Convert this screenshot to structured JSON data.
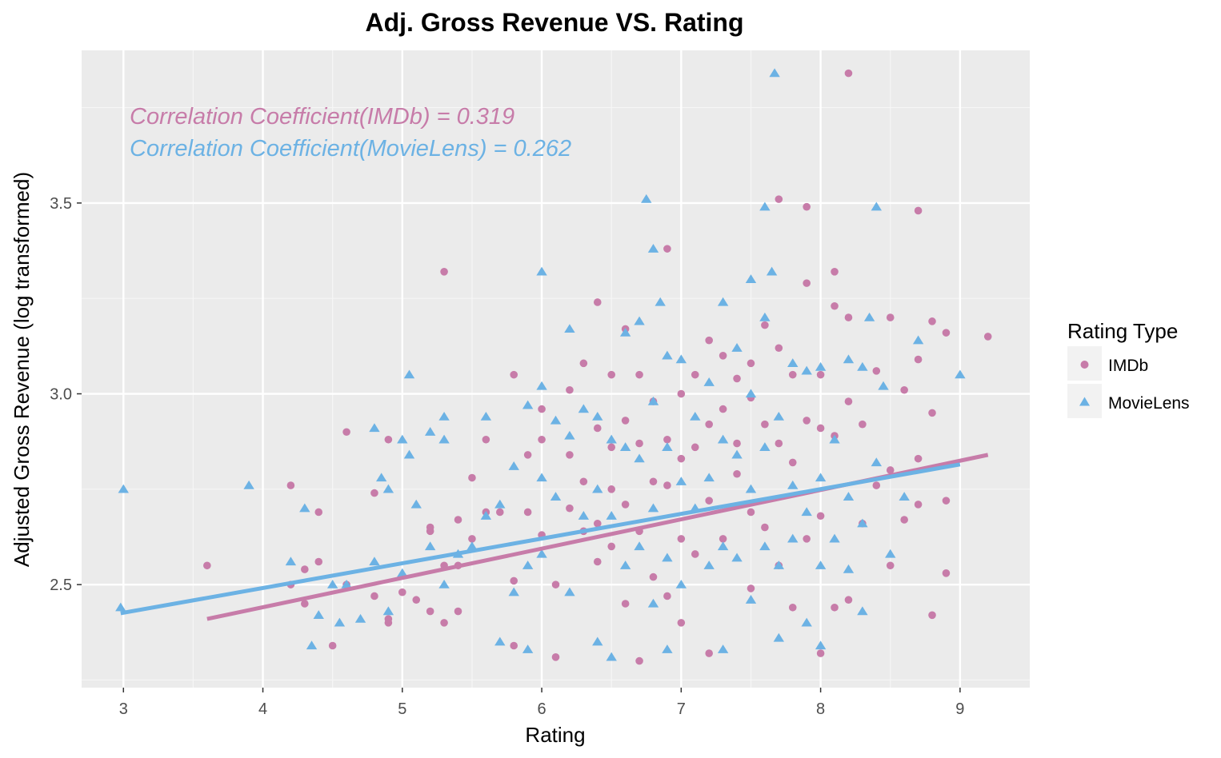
{
  "chart_data": {
    "type": "scatter",
    "title": "Adj. Gross Revenue VS. Rating",
    "xlabel": "Rating",
    "ylabel": "Adjusted Gross Revenue (log transformed)",
    "xlim": [
      2.7,
      9.5
    ],
    "ylim": [
      2.23,
      3.9
    ],
    "xticks": [
      3,
      4,
      5,
      6,
      7,
      8,
      9
    ],
    "yticks": [
      2.5,
      3.0,
      3.5
    ],
    "ytick_labels": [
      "2.5",
      "3.0",
      "3.5"
    ],
    "grid": true,
    "legend": {
      "title": "Rating Type",
      "placement": "right"
    },
    "annotations": [
      {
        "text": "Correlation Coefficient(IMDb) = 0.319",
        "color": "#c77ca9"
      },
      {
        "text": "Correlation Coefficient(MovieLens) = 0.262",
        "color": "#6cb2e4"
      }
    ],
    "series": [
      {
        "name": "IMDb",
        "marker": "circle",
        "color": "#c77ca9",
        "points": [
          [
            3.6,
            2.55
          ],
          [
            4.2,
            2.76
          ],
          [
            4.2,
            2.5
          ],
          [
            4.3,
            2.54
          ],
          [
            4.3,
            2.45
          ],
          [
            4.4,
            2.69
          ],
          [
            4.4,
            2.56
          ],
          [
            4.5,
            2.34
          ],
          [
            4.6,
            2.9
          ],
          [
            4.6,
            2.5
          ],
          [
            4.8,
            2.74
          ],
          [
            4.8,
            2.47
          ],
          [
            4.9,
            2.88
          ],
          [
            4.9,
            2.4
          ],
          [
            4.9,
            2.41
          ],
          [
            5.0,
            2.48
          ],
          [
            5.1,
            2.46
          ],
          [
            5.2,
            2.65
          ],
          [
            5.2,
            2.64
          ],
          [
            5.2,
            2.43
          ],
          [
            5.3,
            3.32
          ],
          [
            5.3,
            2.55
          ],
          [
            5.3,
            2.4
          ],
          [
            5.4,
            2.67
          ],
          [
            5.4,
            2.55
          ],
          [
            5.4,
            2.43
          ],
          [
            5.5,
            2.78
          ],
          [
            5.5,
            2.62
          ],
          [
            5.6,
            2.88
          ],
          [
            5.6,
            2.69
          ],
          [
            5.7,
            2.69
          ],
          [
            5.8,
            3.05
          ],
          [
            5.8,
            2.51
          ],
          [
            5.8,
            2.34
          ],
          [
            5.9,
            2.84
          ],
          [
            5.9,
            2.69
          ],
          [
            6.0,
            2.96
          ],
          [
            6.0,
            2.88
          ],
          [
            6.0,
            2.63
          ],
          [
            6.1,
            2.5
          ],
          [
            6.1,
            2.31
          ],
          [
            6.2,
            3.01
          ],
          [
            6.2,
            2.84
          ],
          [
            6.2,
            2.7
          ],
          [
            6.3,
            3.08
          ],
          [
            6.3,
            2.77
          ],
          [
            6.3,
            2.64
          ],
          [
            6.4,
            3.24
          ],
          [
            6.4,
            2.91
          ],
          [
            6.4,
            2.66
          ],
          [
            6.4,
            2.56
          ],
          [
            6.5,
            3.05
          ],
          [
            6.5,
            2.86
          ],
          [
            6.5,
            2.75
          ],
          [
            6.5,
            2.6
          ],
          [
            6.6,
            3.17
          ],
          [
            6.6,
            2.93
          ],
          [
            6.6,
            2.71
          ],
          [
            6.6,
            2.45
          ],
          [
            6.7,
            3.05
          ],
          [
            6.7,
            2.87
          ],
          [
            6.7,
            2.64
          ],
          [
            6.7,
            2.3
          ],
          [
            6.8,
            2.98
          ],
          [
            6.8,
            2.77
          ],
          [
            6.8,
            2.52
          ],
          [
            6.9,
            3.38
          ],
          [
            6.9,
            2.88
          ],
          [
            6.9,
            2.76
          ],
          [
            6.9,
            2.47
          ],
          [
            7.0,
            3.0
          ],
          [
            7.0,
            2.83
          ],
          [
            7.0,
            2.62
          ],
          [
            7.0,
            2.4
          ],
          [
            7.1,
            3.05
          ],
          [
            7.1,
            2.86
          ],
          [
            7.1,
            2.58
          ],
          [
            7.2,
            3.14
          ],
          [
            7.2,
            2.92
          ],
          [
            7.2,
            2.72
          ],
          [
            7.2,
            2.32
          ],
          [
            7.3,
            3.1
          ],
          [
            7.3,
            2.96
          ],
          [
            7.3,
            2.62
          ],
          [
            7.4,
            3.04
          ],
          [
            7.4,
            2.87
          ],
          [
            7.4,
            2.79
          ],
          [
            7.5,
            3.08
          ],
          [
            7.5,
            2.99
          ],
          [
            7.5,
            2.69
          ],
          [
            7.5,
            2.49
          ],
          [
            7.6,
            3.18
          ],
          [
            7.6,
            2.92
          ],
          [
            7.6,
            2.65
          ],
          [
            7.7,
            3.51
          ],
          [
            7.7,
            3.12
          ],
          [
            7.7,
            2.87
          ],
          [
            7.7,
            2.55
          ],
          [
            7.8,
            3.05
          ],
          [
            7.8,
            2.82
          ],
          [
            7.8,
            2.44
          ],
          [
            7.9,
            3.49
          ],
          [
            7.9,
            3.29
          ],
          [
            7.9,
            2.93
          ],
          [
            7.9,
            2.62
          ],
          [
            8.0,
            3.05
          ],
          [
            8.0,
            2.91
          ],
          [
            8.0,
            2.68
          ],
          [
            8.0,
            2.32
          ],
          [
            8.1,
            3.32
          ],
          [
            8.1,
            3.23
          ],
          [
            8.1,
            2.89
          ],
          [
            8.1,
            2.44
          ],
          [
            8.2,
            3.84
          ],
          [
            8.2,
            3.2
          ],
          [
            8.2,
            2.98
          ],
          [
            8.2,
            2.46
          ],
          [
            8.3,
            2.92
          ],
          [
            8.3,
            2.66
          ],
          [
            8.4,
            3.06
          ],
          [
            8.4,
            2.76
          ],
          [
            8.5,
            3.2
          ],
          [
            8.5,
            2.8
          ],
          [
            8.5,
            2.55
          ],
          [
            8.6,
            3.01
          ],
          [
            8.6,
            2.67
          ],
          [
            8.7,
            3.48
          ],
          [
            8.7,
            3.09
          ],
          [
            8.7,
            2.83
          ],
          [
            8.7,
            2.71
          ],
          [
            8.8,
            3.19
          ],
          [
            8.8,
            2.95
          ],
          [
            8.8,
            2.42
          ],
          [
            8.9,
            3.16
          ],
          [
            8.9,
            2.72
          ],
          [
            8.9,
            2.53
          ],
          [
            9.2,
            3.15
          ]
        ]
      },
      {
        "name": "MovieLens",
        "marker": "triangle",
        "color": "#6cb2e4",
        "points": [
          [
            2.98,
            2.44
          ],
          [
            3.0,
            2.75
          ],
          [
            3.9,
            2.76
          ],
          [
            4.2,
            2.56
          ],
          [
            4.3,
            2.7
          ],
          [
            4.35,
            2.34
          ],
          [
            4.4,
            2.42
          ],
          [
            4.5,
            2.5
          ],
          [
            4.55,
            2.4
          ],
          [
            4.6,
            2.5
          ],
          [
            4.7,
            2.41
          ],
          [
            4.8,
            2.91
          ],
          [
            4.8,
            2.56
          ],
          [
            4.85,
            2.78
          ],
          [
            4.9,
            2.75
          ],
          [
            4.9,
            2.43
          ],
          [
            5.0,
            2.88
          ],
          [
            5.0,
            2.53
          ],
          [
            5.05,
            2.84
          ],
          [
            5.05,
            3.05
          ],
          [
            5.1,
            2.71
          ],
          [
            5.2,
            2.9
          ],
          [
            5.2,
            2.6
          ],
          [
            5.3,
            2.94
          ],
          [
            5.3,
            2.88
          ],
          [
            5.3,
            2.5
          ],
          [
            5.4,
            2.58
          ],
          [
            5.5,
            2.6
          ],
          [
            5.6,
            2.94
          ],
          [
            5.6,
            2.68
          ],
          [
            5.7,
            2.71
          ],
          [
            5.7,
            2.35
          ],
          [
            5.8,
            2.81
          ],
          [
            5.8,
            2.48
          ],
          [
            5.9,
            2.97
          ],
          [
            5.9,
            2.55
          ],
          [
            5.9,
            2.33
          ],
          [
            6.0,
            3.32
          ],
          [
            6.0,
            3.02
          ],
          [
            6.0,
            2.78
          ],
          [
            6.0,
            2.58
          ],
          [
            6.1,
            2.93
          ],
          [
            6.1,
            2.73
          ],
          [
            6.2,
            3.17
          ],
          [
            6.2,
            2.89
          ],
          [
            6.2,
            2.48
          ],
          [
            6.3,
            2.96
          ],
          [
            6.3,
            2.68
          ],
          [
            6.4,
            2.94
          ],
          [
            6.4,
            2.75
          ],
          [
            6.4,
            2.35
          ],
          [
            6.5,
            2.88
          ],
          [
            6.5,
            2.68
          ],
          [
            6.5,
            2.31
          ],
          [
            6.6,
            3.16
          ],
          [
            6.6,
            2.86
          ],
          [
            6.6,
            2.55
          ],
          [
            6.7,
            3.19
          ],
          [
            6.7,
            2.83
          ],
          [
            6.7,
            2.6
          ],
          [
            6.75,
            3.51
          ],
          [
            6.8,
            3.38
          ],
          [
            6.8,
            2.98
          ],
          [
            6.8,
            2.7
          ],
          [
            6.8,
            2.45
          ],
          [
            6.85,
            3.24
          ],
          [
            6.9,
            3.1
          ],
          [
            6.9,
            2.86
          ],
          [
            6.9,
            2.57
          ],
          [
            6.9,
            2.33
          ],
          [
            7.0,
            3.09
          ],
          [
            7.0,
            2.77
          ],
          [
            7.0,
            2.5
          ],
          [
            7.1,
            2.94
          ],
          [
            7.1,
            2.7
          ],
          [
            7.2,
            3.03
          ],
          [
            7.2,
            2.78
          ],
          [
            7.2,
            2.55
          ],
          [
            7.3,
            3.24
          ],
          [
            7.3,
            2.88
          ],
          [
            7.3,
            2.6
          ],
          [
            7.3,
            2.33
          ],
          [
            7.4,
            3.12
          ],
          [
            7.4,
            2.84
          ],
          [
            7.4,
            2.57
          ],
          [
            7.5,
            3.3
          ],
          [
            7.5,
            3.0
          ],
          [
            7.5,
            2.75
          ],
          [
            7.5,
            2.46
          ],
          [
            7.6,
            3.49
          ],
          [
            7.6,
            3.2
          ],
          [
            7.6,
            2.86
          ],
          [
            7.6,
            2.6
          ],
          [
            7.65,
            3.32
          ],
          [
            7.67,
            3.84
          ],
          [
            7.7,
            2.94
          ],
          [
            7.7,
            2.55
          ],
          [
            7.7,
            2.36
          ],
          [
            7.8,
            3.08
          ],
          [
            7.8,
            2.76
          ],
          [
            7.8,
            2.62
          ],
          [
            7.9,
            3.06
          ],
          [
            7.9,
            2.69
          ],
          [
            7.9,
            2.4
          ],
          [
            8.0,
            3.07
          ],
          [
            8.0,
            2.78
          ],
          [
            8.0,
            2.55
          ],
          [
            8.0,
            2.34
          ],
          [
            8.1,
            2.88
          ],
          [
            8.1,
            2.62
          ],
          [
            8.2,
            3.09
          ],
          [
            8.2,
            2.73
          ],
          [
            8.2,
            2.54
          ],
          [
            8.3,
            3.07
          ],
          [
            8.3,
            2.66
          ],
          [
            8.3,
            2.43
          ],
          [
            8.35,
            3.2
          ],
          [
            8.4,
            3.49
          ],
          [
            8.4,
            2.82
          ],
          [
            8.45,
            3.02
          ],
          [
            8.5,
            2.58
          ],
          [
            8.6,
            2.73
          ],
          [
            8.7,
            3.14
          ],
          [
            9.0,
            3.05
          ]
        ]
      }
    ],
    "trendlines": [
      {
        "series": "IMDb",
        "color": "#c77ca9",
        "x": [
          3.6,
          9.2
        ],
        "y": [
          2.41,
          2.84
        ]
      },
      {
        "series": "MovieLens",
        "color": "#6cb2e4",
        "x": [
          2.98,
          9.0
        ],
        "y": [
          2.425,
          2.815
        ]
      }
    ]
  }
}
